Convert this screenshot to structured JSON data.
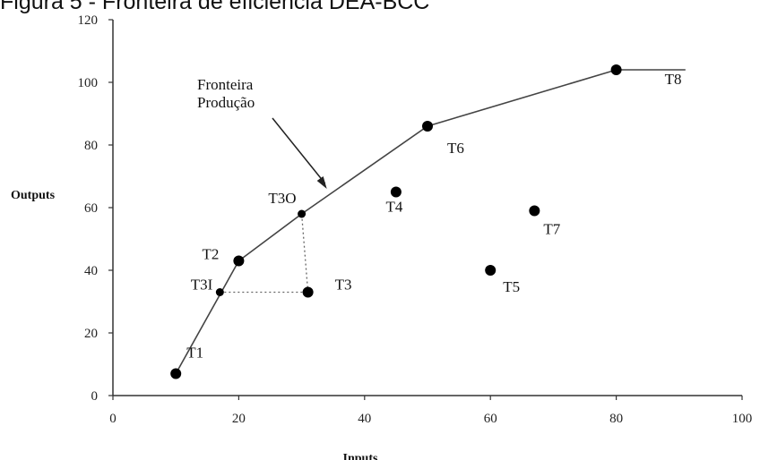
{
  "caption": "Figura 5 - Fronteira de eficiência DEA-BCC",
  "chart_data": {
    "type": "scatter",
    "title": "",
    "xlabel": "Inputs",
    "ylabel": "Outputs",
    "xlim": [
      0,
      100
    ],
    "ylim": [
      0,
      120
    ],
    "xticks": [
      0,
      20,
      40,
      60,
      80,
      100
    ],
    "yticks": [
      0,
      20,
      40,
      60,
      80,
      100,
      120
    ],
    "frontier": [
      [
        10,
        7
      ],
      [
        20,
        43
      ],
      [
        30,
        58
      ],
      [
        50,
        86
      ],
      [
        80,
        104
      ],
      [
        91,
        104
      ]
    ],
    "points": [
      {
        "label": "T1",
        "x": 10,
        "y": 7
      },
      {
        "label": "T2",
        "x": 20,
        "y": 43
      },
      {
        "label": "T3",
        "x": 31,
        "y": 33
      },
      {
        "label": "T3I",
        "x": 17,
        "y": 33
      },
      {
        "label": "T3O",
        "x": 30,
        "y": 58
      },
      {
        "label": "T4",
        "x": 45,
        "y": 65
      },
      {
        "label": "T5",
        "x": 60,
        "y": 40
      },
      {
        "label": "T6",
        "x": 50,
        "y": 86
      },
      {
        "label": "T7",
        "x": 67,
        "y": 59
      },
      {
        "label": "T8",
        "x": 80,
        "y": 104
      }
    ],
    "projection_lines": [
      {
        "from": [
          17,
          33
        ],
        "to": [
          31,
          33
        ]
      },
      {
        "from": [
          31,
          33
        ],
        "to": [
          30,
          58
        ]
      }
    ],
    "annotation": {
      "text_lines": [
        "Fronteira",
        "Produção"
      ],
      "target": [
        34,
        66
      ]
    }
  }
}
